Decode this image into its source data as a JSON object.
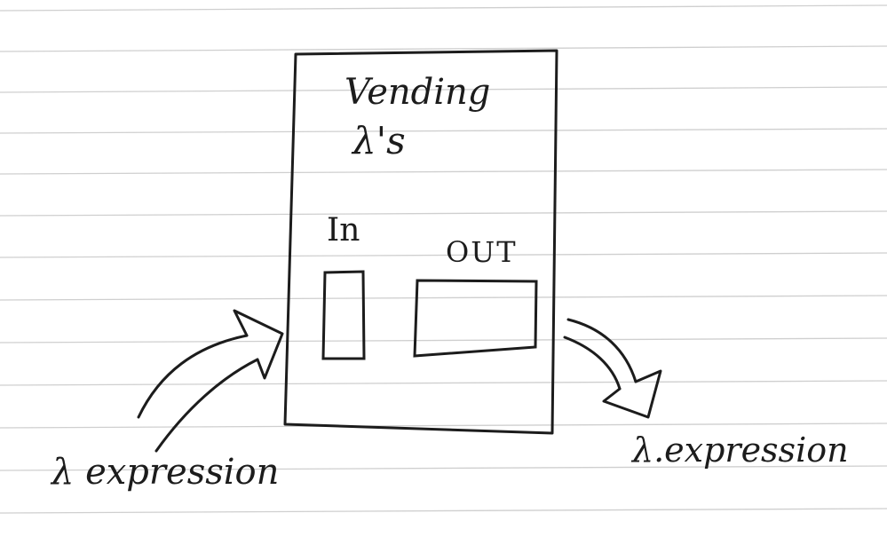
{
  "machine": {
    "title_line1": "Vending",
    "title_line2": "λ's",
    "in_label": "In",
    "out_label": "OUT"
  },
  "captions": {
    "input": "λ expression",
    "output": "λ.expression"
  },
  "colors": {
    "paper": "#ffffff",
    "rule_lines": "#c9c9c9",
    "ink": "#1c1c1c"
  }
}
